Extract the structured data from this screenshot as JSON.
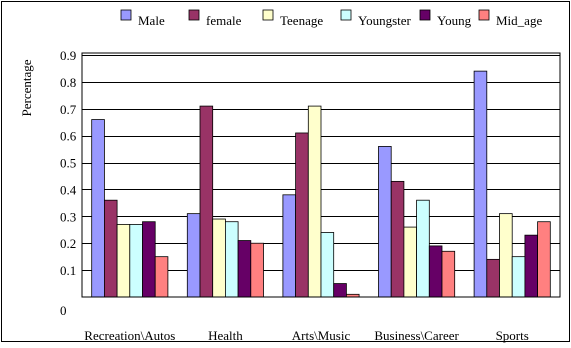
{
  "chart_data": {
    "type": "bar",
    "title": "",
    "xlabel": "",
    "ylabel": "Percentage",
    "ylim": [
      0,
      0.9
    ],
    "ytick_values": [
      0,
      0.1,
      0.2,
      0.3,
      0.4,
      0.5,
      0.6,
      0.7,
      0.8,
      0.9
    ],
    "ytick_labels": [
      "0",
      "0.1",
      "0.2",
      "0.3",
      "0.4",
      "0.5",
      "0.6",
      "0.7",
      "0.8",
      "0.9"
    ],
    "grid": true,
    "legend_position": "top",
    "categories": [
      "Recreation\\Autos",
      "Health",
      "Arts\\Music",
      "Business\\Career",
      "Sports"
    ],
    "series": [
      {
        "name": "Male",
        "color": "#9999ff",
        "values": [
          0.66,
          0.31,
          0.38,
          0.56,
          0.84
        ]
      },
      {
        "name": "female",
        "color": "#993366",
        "values": [
          0.36,
          0.71,
          0.61,
          0.43,
          0.14
        ]
      },
      {
        "name": "Teenage",
        "color": "#ffffcc",
        "values": [
          0.27,
          0.29,
          0.71,
          0.26,
          0.31
        ]
      },
      {
        "name": "Youngster",
        "color": "#ccffff",
        "values": [
          0.27,
          0.28,
          0.24,
          0.36,
          0.15
        ]
      },
      {
        "name": "Young",
        "color": "#660066",
        "values": [
          0.28,
          0.21,
          0.05,
          0.19,
          0.23
        ]
      },
      {
        "name": "Mid_age",
        "color": "#ff8080",
        "values": [
          0.15,
          0.2,
          0.01,
          0.17,
          0.28
        ]
      }
    ]
  }
}
